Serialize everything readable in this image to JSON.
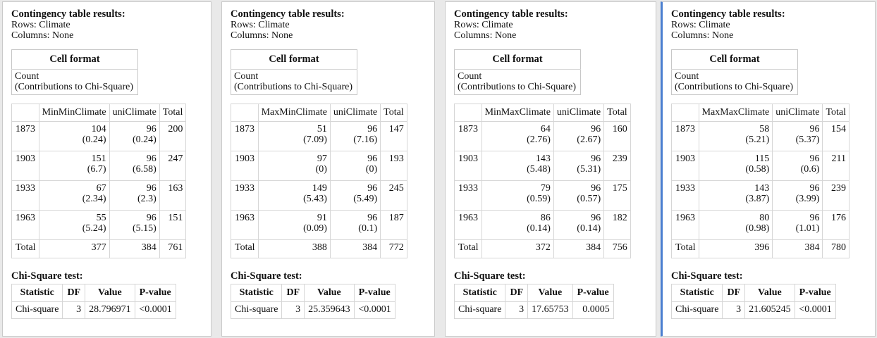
{
  "panels": [
    {
      "title": "Contingency table results:",
      "rows_line": "Rows: Climate",
      "cols_line": "Columns: None",
      "cell_format": {
        "header": "Cell format",
        "line1": "Count",
        "line2": "(Contributions to Chi-Square)"
      },
      "columns": [
        "",
        "MinMinClimate",
        "uniClimate",
        "Total"
      ],
      "rows": [
        {
          "label": "1873",
          "c1": "104",
          "c1b": "(0.24)",
          "c2": "96",
          "c2b": "(0.24)",
          "total": "200"
        },
        {
          "label": "1903",
          "c1": "151",
          "c1b": "(6.7)",
          "c2": "96",
          "c2b": "(6.58)",
          "total": "247"
        },
        {
          "label": "1933",
          "c1": "67",
          "c1b": "(2.34)",
          "c2": "96",
          "c2b": "(2.3)",
          "total": "163"
        },
        {
          "label": "1963",
          "c1": "55",
          "c1b": "(5.24)",
          "c2": "96",
          "c2b": "(5.15)",
          "total": "151"
        }
      ],
      "totals": {
        "label": "Total",
        "c1": "377",
        "c2": "384",
        "total": "761"
      },
      "chi": {
        "title": "Chi-Square test:",
        "h_stat": "Statistic",
        "h_df": "DF",
        "h_val": "Value",
        "h_p": "P-value",
        "stat": "Chi-square",
        "df": "3",
        "val": "28.796971",
        "p": "<0.0001"
      }
    },
    {
      "title": "Contingency table results:",
      "rows_line": "Rows: Climate",
      "cols_line": "Columns: None",
      "cell_format": {
        "header": "Cell format",
        "line1": "Count",
        "line2": "(Contributions to Chi-Square)"
      },
      "columns": [
        "",
        "MaxMinClimate",
        "uniClimate",
        "Total"
      ],
      "rows": [
        {
          "label": "1873",
          "c1": "51",
          "c1b": "(7.09)",
          "c2": "96",
          "c2b": "(7.16)",
          "total": "147"
        },
        {
          "label": "1903",
          "c1": "97",
          "c1b": "(0)",
          "c2": "96",
          "c2b": "(0)",
          "total": "193"
        },
        {
          "label": "1933",
          "c1": "149",
          "c1b": "(5.43)",
          "c2": "96",
          "c2b": "(5.49)",
          "total": "245"
        },
        {
          "label": "1963",
          "c1": "91",
          "c1b": "(0.09)",
          "c2": "96",
          "c2b": "(0.1)",
          "total": "187"
        }
      ],
      "totals": {
        "label": "Total",
        "c1": "388",
        "c2": "384",
        "total": "772"
      },
      "chi": {
        "title": "Chi-Square test:",
        "h_stat": "Statistic",
        "h_df": "DF",
        "h_val": "Value",
        "h_p": "P-value",
        "stat": "Chi-square",
        "df": "3",
        "val": "25.359643",
        "p": "<0.0001"
      }
    },
    {
      "title": "Contingency table results:",
      "rows_line": "Rows: Climate",
      "cols_line": "Columns: None",
      "cell_format": {
        "header": "Cell format",
        "line1": "Count",
        "line2": "(Contributions to Chi-Square)"
      },
      "columns": [
        "",
        "MinMaxClimate",
        "uniClimate",
        "Total"
      ],
      "rows": [
        {
          "label": "1873",
          "c1": "64",
          "c1b": "(2.76)",
          "c2": "96",
          "c2b": "(2.67)",
          "total": "160"
        },
        {
          "label": "1903",
          "c1": "143",
          "c1b": "(5.48)",
          "c2": "96",
          "c2b": "(5.31)",
          "total": "239"
        },
        {
          "label": "1933",
          "c1": "79",
          "c1b": "(0.59)",
          "c2": "96",
          "c2b": "(0.57)",
          "total": "175"
        },
        {
          "label": "1963",
          "c1": "86",
          "c1b": "(0.14)",
          "c2": "96",
          "c2b": "(0.14)",
          "total": "182"
        }
      ],
      "totals": {
        "label": "Total",
        "c1": "372",
        "c2": "384",
        "total": "756"
      },
      "chi": {
        "title": "Chi-Square test:",
        "h_stat": "Statistic",
        "h_df": "DF",
        "h_val": "Value",
        "h_p": "P-value",
        "stat": "Chi-square",
        "df": "3",
        "val": "17.65753",
        "p": "0.0005"
      }
    },
    {
      "title": "Contingency table results:",
      "rows_line": "Rows: Climate",
      "cols_line": "Columns: None",
      "cell_format": {
        "header": "Cell format",
        "line1": "Count",
        "line2": "(Contributions to Chi-Square)"
      },
      "columns": [
        "",
        "MaxMaxClimate",
        "uniClimate",
        "Total"
      ],
      "rows": [
        {
          "label": "1873",
          "c1": "58",
          "c1b": "(5.21)",
          "c2": "96",
          "c2b": "(5.37)",
          "total": "154"
        },
        {
          "label": "1903",
          "c1": "115",
          "c1b": "(0.58)",
          "c2": "96",
          "c2b": "(0.6)",
          "total": "211"
        },
        {
          "label": "1933",
          "c1": "143",
          "c1b": "(3.87)",
          "c2": "96",
          "c2b": "(3.99)",
          "total": "239"
        },
        {
          "label": "1963",
          "c1": "80",
          "c1b": "(0.98)",
          "c2": "96",
          "c2b": "(1.01)",
          "total": "176"
        }
      ],
      "totals": {
        "label": "Total",
        "c1": "396",
        "c2": "384",
        "total": "780"
      },
      "chi": {
        "title": "Chi-Square test:",
        "h_stat": "Statistic",
        "h_df": "DF",
        "h_val": "Value",
        "h_p": "P-value",
        "stat": "Chi-square",
        "df": "3",
        "val": "21.605245",
        "p": "<0.0001"
      }
    }
  ],
  "selected_panel_accent": "#4a7ed0"
}
